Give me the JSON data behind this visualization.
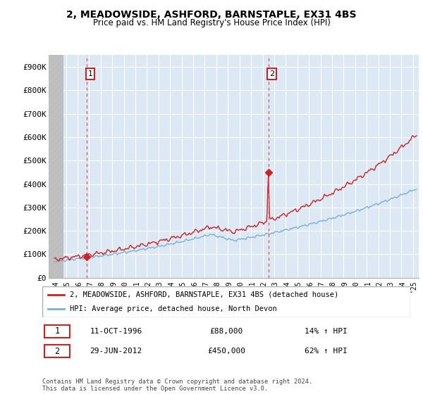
{
  "title": "2, MEADOWSIDE, ASHFORD, BARNSTAPLE, EX31 4BS",
  "subtitle": "Price paid vs. HM Land Registry's House Price Index (HPI)",
  "sale1_date": 1996.79,
  "sale1_price": 88000,
  "sale1_label": "1",
  "sale2_date": 2012.49,
  "sale2_price": 450000,
  "sale2_label": "2",
  "hpi_color": "#7bafd4",
  "price_color": "#cc2222",
  "dashed_color": "#e06060",
  "point_color": "#cc2222",
  "legend1": "2, MEADOWSIDE, ASHFORD, BARNSTAPLE, EX31 4BS (detached house)",
  "legend2": "HPI: Average price, detached house, North Devon",
  "table_row1": [
    "1",
    "11-OCT-1996",
    "£88,000",
    "14% ↑ HPI"
  ],
  "table_row2": [
    "2",
    "29-JUN-2012",
    "£450,000",
    "62% ↑ HPI"
  ],
  "footnote": "Contains HM Land Registry data © Crown copyright and database right 2024.\nThis data is licensed under the Open Government Licence v3.0.",
  "xmin": 1993.5,
  "xmax": 2025.5,
  "ymin": 0,
  "ymax": 950000,
  "yticks": [
    0,
    100000,
    200000,
    300000,
    400000,
    500000,
    600000,
    700000,
    800000,
    900000
  ],
  "ytick_labels": [
    "£0",
    "£100K",
    "£200K",
    "£300K",
    "£400K",
    "£500K",
    "£600K",
    "£700K",
    "£800K",
    "£900K"
  ],
  "xtick_years": [
    1994,
    1995,
    1996,
    1997,
    1998,
    1999,
    2000,
    2001,
    2002,
    2003,
    2004,
    2005,
    2006,
    2007,
    2008,
    2009,
    2010,
    2011,
    2012,
    2013,
    2014,
    2015,
    2016,
    2017,
    2018,
    2019,
    2020,
    2021,
    2022,
    2023,
    2024,
    2025
  ],
  "bg_color": "#dce9f5",
  "hatch_color": "#aaaaaa"
}
